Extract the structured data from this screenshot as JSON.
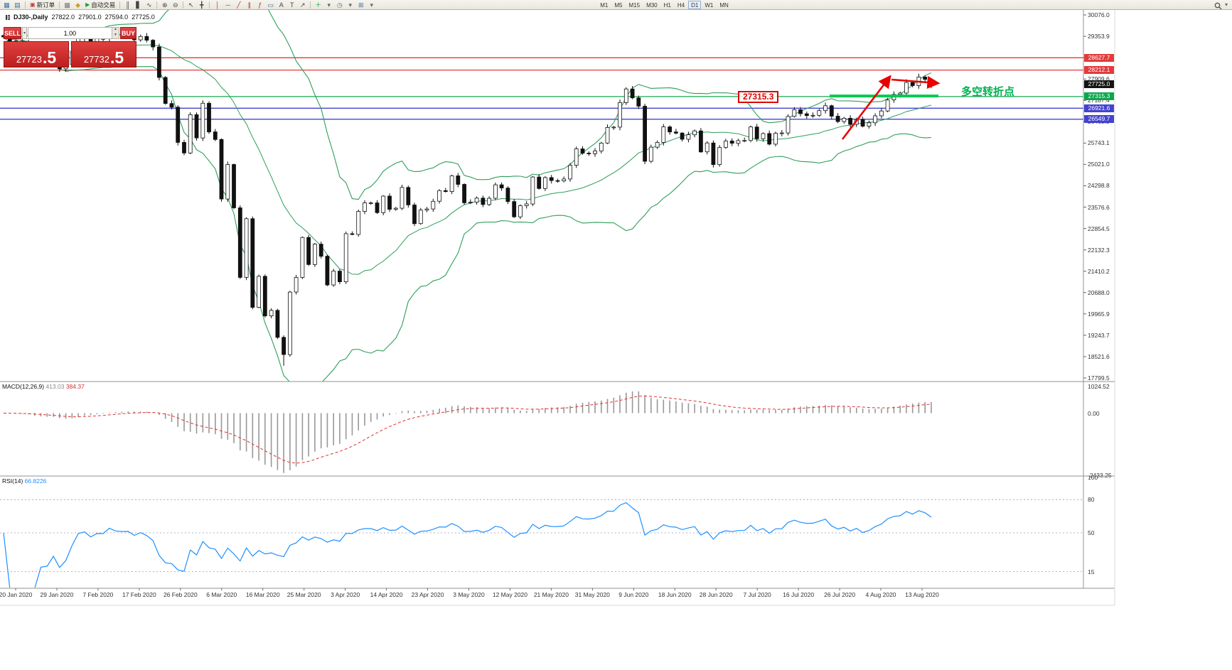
{
  "toolbar": {
    "items": [
      {
        "t": "icon",
        "name": "new-chart-icon",
        "g": "▦",
        "c": "#3b6ea5"
      },
      {
        "t": "icon",
        "name": "chart-profiles-icon",
        "g": "▤",
        "c": "#3b6ea5"
      },
      {
        "t": "sep"
      },
      {
        "t": "button",
        "name": "new-order-button",
        "g": "▣",
        "c": "#c43b3b",
        "label": "新订单"
      },
      {
        "t": "sep"
      },
      {
        "t": "icon",
        "name": "expert-advisors-icon",
        "g": "▩",
        "c": "#777777"
      },
      {
        "t": "icon",
        "name": "alerts-icon",
        "g": "◆",
        "c": "#c9a227"
      },
      {
        "t": "button",
        "name": "autotrading-button",
        "g": "▶",
        "c": "#1aa331",
        "label": "自动交易"
      },
      {
        "t": "sep"
      },
      {
        "t": "icon",
        "name": "bar-chart-icon",
        "g": "║",
        "c": "#444444"
      },
      {
        "t": "icon",
        "name": "candlestick-chart-icon",
        "g": "▋",
        "c": "#444444"
      },
      {
        "t": "icon",
        "name": "line-chart-icon",
        "g": "∿",
        "c": "#444444"
      },
      {
        "t": "sep"
      },
      {
        "t": "icon",
        "name": "zoom-in-icon",
        "g": "⊕",
        "c": "#444444"
      },
      {
        "t": "icon",
        "name": "zoom-out-icon",
        "g": "⊖",
        "c": "#444444"
      },
      {
        "t": "sep"
      },
      {
        "t": "icon",
        "name": "cursor-icon",
        "g": "↖",
        "c": "#444444"
      },
      {
        "t": "icon",
        "name": "crosshair-icon",
        "g": "╋",
        "c": "#444444"
      },
      {
        "t": "sep"
      },
      {
        "t": "icon",
        "name": "vertical-line-icon",
        "g": "│",
        "c": "#b03030"
      },
      {
        "t": "icon",
        "name": "horizontal-line-icon",
        "g": "─",
        "c": "#b03030"
      },
      {
        "t": "icon",
        "name": "trendline-icon",
        "g": "╱",
        "c": "#b03030"
      },
      {
        "t": "icon",
        "name": "channel-icon",
        "g": "∥",
        "c": "#b03030"
      },
      {
        "t": "icon",
        "name": "fibonacci-icon",
        "g": "ƒ",
        "c": "#b03030"
      },
      {
        "t": "icon",
        "name": "shapes-icon",
        "g": "▭",
        "c": "#3b6ea5"
      },
      {
        "t": "icon",
        "name": "text-icon",
        "g": "A",
        "c": "#444444"
      },
      {
        "t": "icon",
        "name": "text-label-icon",
        "g": "T",
        "c": "#444444"
      },
      {
        "t": "icon",
        "name": "arrow-tool-icon",
        "g": "↗",
        "c": "#444444"
      },
      {
        "t": "sep"
      },
      {
        "t": "icon",
        "name": "indicators-icon",
        "g": "＋",
        "c": "#1aa331"
      },
      {
        "t": "icon",
        "name": "indicators-chevron-icon",
        "g": "▾",
        "c": "#666666"
      },
      {
        "t": "icon",
        "name": "periods-icon",
        "g": "◷",
        "c": "#3b6ea5"
      },
      {
        "t": "icon",
        "name": "periods-chevron-icon",
        "g": "▾",
        "c": "#666666"
      },
      {
        "t": "icon",
        "name": "templates-icon",
        "g": "⊞",
        "c": "#3b6ea5"
      },
      {
        "t": "icon",
        "name": "templates-chevron-icon",
        "g": "▾",
        "c": "#666666"
      }
    ],
    "timeframes": [
      "M1",
      "M5",
      "M15",
      "M30",
      "H1",
      "H4",
      "D1",
      "W1",
      "MN"
    ],
    "active_timeframe": "D1",
    "right_chevron": "▾"
  },
  "chart": {
    "title": {
      "symbol": "DJ30-,Daily",
      "open": "27822.0",
      "high": "27901.0",
      "low": "27594.0",
      "close": "27725.0"
    },
    "one_click": {
      "sell_label": "SELL",
      "buy_label": "BUY",
      "lot_value": "1.00",
      "sell_price": "27723.5",
      "buy_price": "27732.5",
      "sell_price_main": "27723",
      "sell_price_big": ".5",
      "buy_price_main": "27732",
      "buy_price_big": ".5",
      "dropdown_glyph": "▾",
      "spin_up": "▲",
      "spin_down": "▼",
      "collapse_glyph": "▼"
    },
    "price_axis": {
      "ticks": [
        "30076.0",
        "29353.9",
        "28631.7",
        "27909.6",
        "27187.4",
        "26465.3",
        "25743.1",
        "25021.0",
        "24298.8",
        "23576.6",
        "22854.5",
        "22132.3",
        "21410.2",
        "20688.0",
        "19965.9",
        "19243.7",
        "18521.6",
        "17799.5"
      ],
      "tags": [
        {
          "text": "28627.7",
          "price": 28627.7,
          "bg": "#e23b3b"
        },
        {
          "text": "28212.1",
          "price": 28212.1,
          "bg": "#e23b3b"
        },
        {
          "text": "27725.0",
          "price": 27725.0,
          "bg": "#141414"
        },
        {
          "text": "27315.3",
          "price": 27315.3,
          "bg": "#0aa64b"
        },
        {
          "text": "26921.6",
          "price": 26921.6,
          "bg": "#4343cf"
        },
        {
          "text": "26549.7",
          "price": 26549.7,
          "bg": "#4343cf"
        }
      ]
    },
    "macd": {
      "name": "MACD(12,26,9)",
      "value_main": "413.03",
      "value_signal": "384.37",
      "axis": [
        "1024.52",
        "0.00",
        "-2433.25"
      ]
    },
    "rsi": {
      "name": "RSI(14)",
      "value": "66.8226",
      "axis": [
        "100",
        "80",
        "50",
        "15"
      ]
    },
    "annotations": {
      "price_flag": "27315.3",
      "note_text": "多空转折点",
      "note_color": "#00b050"
    }
  },
  "chart_data": {
    "type": "candlestick",
    "symbol": "DJ30",
    "timeframe": "Daily",
    "title": "DJ30-,Daily",
    "x_labels": [
      "20 Jan 2020",
      "29 Jan 2020",
      "7 Feb 2020",
      "17 Feb 2020",
      "26 Feb 2020",
      "6 Mar 2020",
      "16 Mar 2020",
      "25 Mar 2020",
      "3 Apr 2020",
      "14 Apr 2020",
      "23 Apr 2020",
      "3 May 2020",
      "12 May 2020",
      "21 May 2020",
      "31 May 2020",
      "9 Jun 2020",
      "18 Jun 2020",
      "28 Jun 2020",
      "7 Jul 2020",
      "16 Jul 2020",
      "26 Jul 2020",
      "4 Aug 2020",
      "13 Aug 2020"
    ],
    "price_axis_range": [
      17799.5,
      30076.0
    ],
    "first_open": 29379,
    "closes": [
      29330,
      29196,
      29186,
      29160,
      28990,
      28536,
      28723,
      28734,
      28859,
      28256,
      28400,
      28808,
      29291,
      29380,
      29103,
      29277,
      29276,
      29551,
      29423,
      29398,
      29405,
      29232,
      29348,
      29220,
      28992,
      27961,
      27081,
      26958,
      25767,
      25409,
      26703,
      25917,
      27091,
      26121,
      25865,
      23851,
      25018,
      23553,
      21201,
      23186,
      20188,
      21237,
      19899,
      20087,
      19174,
      18592,
      20705,
      21201,
      22552,
      21637,
      22327,
      21917,
      20944,
      21413,
      21053,
      22680,
      22654,
      23434,
      23719,
      23719,
      23391,
      23950,
      23504,
      23538,
      24242,
      23650,
      23019,
      23476,
      23515,
      23775,
      24134,
      24102,
      24634,
      24346,
      23724,
      23749,
      23883,
      23665,
      23876,
      24331,
      24222,
      23765,
      23248,
      23625,
      23685,
      24597,
      24207,
      24576,
      24474,
      24465,
      24529,
      24995,
      25548,
      25401,
      25383,
      25475,
      25743,
      26270,
      26282,
      27111,
      27572,
      27272,
      26990,
      25128,
      25605,
      25763,
      26290,
      26120,
      26080,
      25871,
      26025,
      26156,
      25445,
      25746,
      25016,
      25596,
      25813,
      25735,
      25827,
      25830,
      26287,
      25890,
      26067,
      25706,
      26075,
      26086,
      26643,
      26870,
      26735,
      26672,
      26681,
      26840,
      27006,
      26652,
      26470,
      26584,
      26379,
      26539,
      26313,
      26428,
      26664,
      26828,
      27201,
      27387,
      27433,
      27791,
      27686,
      27977,
      27897,
      27725
    ],
    "last_bar": {
      "open": 27822.0,
      "high": 27901.0,
      "low": 27594.0,
      "close": 27725.0
    },
    "indicators": [
      {
        "type": "bollinger_bands",
        "period": 20,
        "deviation": 2,
        "color": "#2e9e5a"
      },
      {
        "type": "macd",
        "fast": 12,
        "slow": 26,
        "signal": 9,
        "shown_values": [
          413.03,
          384.37
        ],
        "axis_labels": [
          1024.52,
          0.0,
          -2433.25
        ],
        "histogram_color": "#989898",
        "signal_color": "#e03030"
      },
      {
        "type": "rsi",
        "period": 14,
        "shown_value": 66.8226,
        "levels": [
          80,
          50,
          15
        ],
        "color": "#1e90ff"
      }
    ],
    "horizontal_lines": [
      {
        "price": 28627.7,
        "color": "#e23b3b"
      },
      {
        "price": 28212.1,
        "color": "#e23b3b"
      },
      {
        "price": 27315.3,
        "color": "#17a94f"
      },
      {
        "price": 26921.6,
        "color": "#4343cf"
      },
      {
        "price": 26549.7,
        "color": "#4343cf"
      }
    ],
    "drawn_objects": [
      {
        "type": "thick_horizontal_segment",
        "price": 27335,
        "color": "#00c853"
      },
      {
        "type": "up_trend_arrow",
        "color": "#e80000"
      },
      {
        "type": "right_arrow",
        "color": "#e80000"
      },
      {
        "type": "text_flag",
        "text": "27315.3",
        "color": "#e00000"
      },
      {
        "type": "note_text",
        "text": "多空转折点",
        "color": "#00b050"
      }
    ]
  }
}
